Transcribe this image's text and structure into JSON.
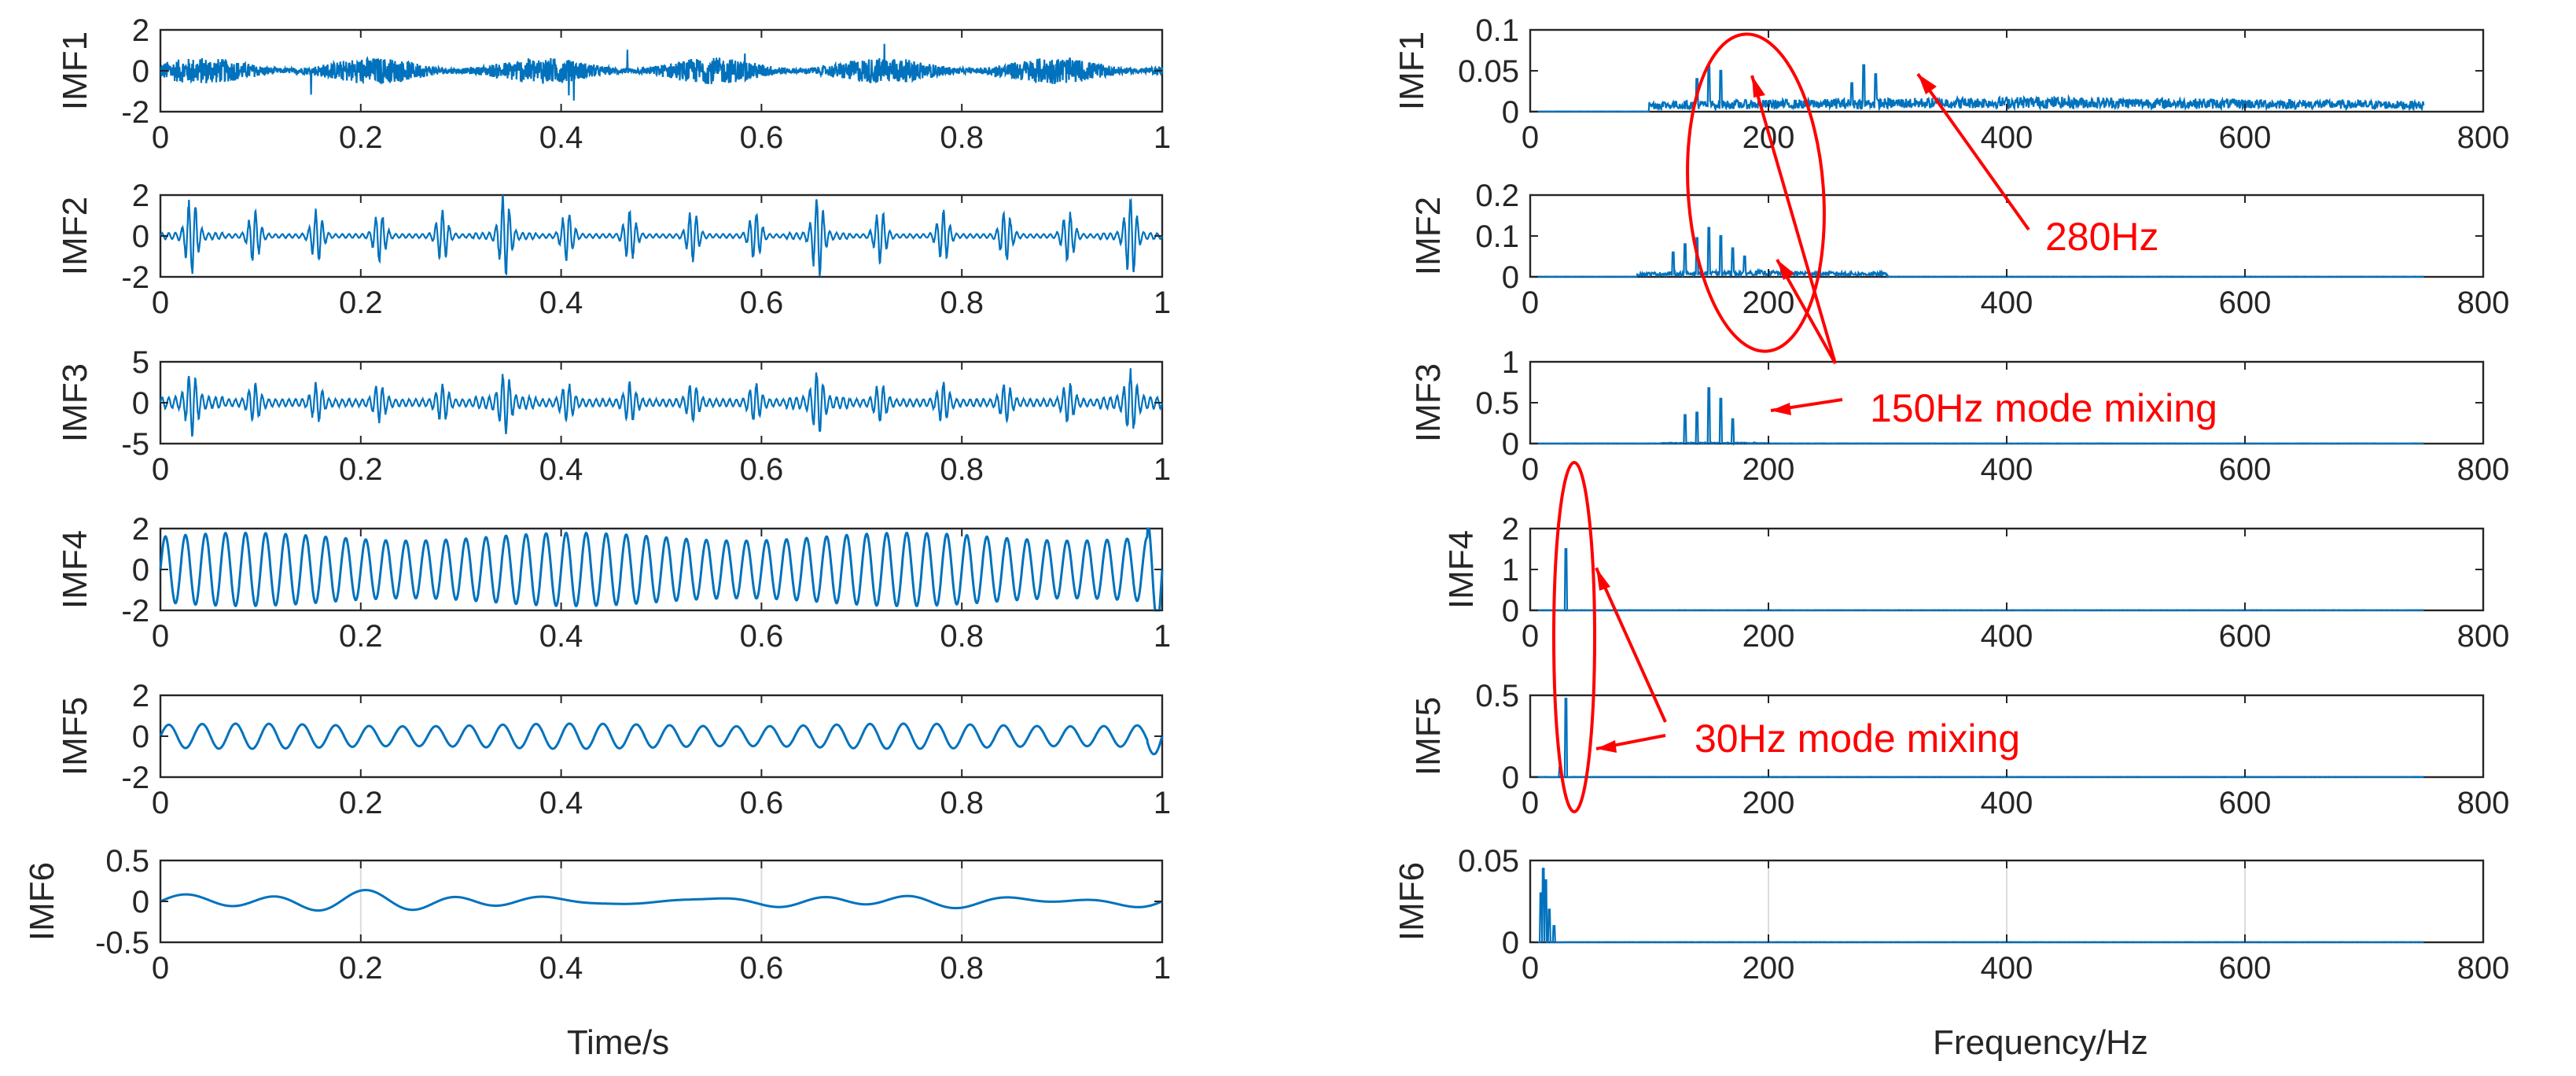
{
  "colors": {
    "signal": "#0072bd",
    "annotation": "#ff0000",
    "axis": "#262626",
    "grid": "#dcdcdc"
  },
  "chart_data": [
    {
      "panel": "time-domain",
      "type": "line",
      "xlabel": "Time/s",
      "xlim": [
        0,
        1
      ],
      "xticks": [
        "0",
        "0.2",
        "0.4",
        "0.6",
        "0.8",
        "1"
      ],
      "xtick_values": [
        0,
        0.2,
        0.4,
        0.6,
        0.8,
        1
      ],
      "rows": [
        {
          "label": "IMF1",
          "ylim": [
            -2,
            2
          ],
          "ytick_values": [
            -2,
            0,
            2
          ],
          "yticks": [
            "-2",
            "0",
            "2"
          ],
          "shape": "noise",
          "amp": 0.65,
          "freq": 280,
          "grid": false
        },
        {
          "label": "IMF2",
          "ylim": [
            -2,
            2
          ],
          "ytick_values": [
            -2,
            0,
            2
          ],
          "yticks": [
            "-2",
            "0",
            "2"
          ],
          "shape": "bursts",
          "amp": 1.3,
          "freq": 150,
          "grid": false
        },
        {
          "label": "IMF3",
          "ylim": [
            -5,
            5
          ],
          "ytick_values": [
            -5,
            0,
            5
          ],
          "yticks": [
            "-5",
            "0",
            "5"
          ],
          "shape": "bursts_dense",
          "amp": 2.2,
          "freq": 150,
          "grid": false
        },
        {
          "label": "IMF4",
          "ylim": [
            -2,
            2
          ],
          "ytick_values": [
            -2,
            0,
            2
          ],
          "yticks": [
            "-2",
            "0",
            "2"
          ],
          "shape": "sine",
          "amp": 1.6,
          "freq": 50,
          "grid": false
        },
        {
          "label": "IMF5",
          "ylim": [
            -2,
            2
          ],
          "ytick_values": [
            -2,
            0,
            2
          ],
          "yticks": [
            "-2",
            "0",
            "2"
          ],
          "shape": "sine",
          "amp": 0.55,
          "freq": 30,
          "grid": false
        },
        {
          "label": "IMF6",
          "ylim": [
            -0.5,
            0.5
          ],
          "ytick_values": [
            -0.5,
            0,
            0.5
          ],
          "yticks": [
            "-0.5",
            "0",
            "0.5"
          ],
          "shape": "low",
          "amp": 0.1,
          "freq": 11,
          "grid": true
        }
      ]
    },
    {
      "panel": "frequency-domain",
      "type": "line",
      "xlabel": "Frequency/Hz",
      "xlim": [
        0,
        800
      ],
      "data_xmax": 750,
      "xticks": [
        "0",
        "200",
        "400",
        "600",
        "800"
      ],
      "xtick_values": [
        0,
        200,
        400,
        600,
        800
      ],
      "rows": [
        {
          "label": "IMF1",
          "ylim": [
            0,
            0.1
          ],
          "ytick_values": [
            0,
            0.05,
            0.1
          ],
          "yticks": [
            "0",
            "0.05",
            "0.1"
          ],
          "peaks": [
            [
              150,
              0.057
            ],
            [
              160,
              0.05
            ],
            [
              140,
              0.04
            ],
            [
              280,
              0.057
            ],
            [
              290,
              0.046
            ],
            [
              270,
              0.035
            ]
          ],
          "floor": 0.012,
          "band": [
            100,
            750
          ],
          "grid": false
        },
        {
          "label": "IMF2",
          "ylim": [
            0,
            0.2
          ],
          "ytick_values": [
            0,
            0.1,
            0.2
          ],
          "yticks": [
            "0",
            "0.1",
            "0.2"
          ],
          "peaks": [
            [
              150,
              0.12
            ],
            [
              160,
              0.1
            ],
            [
              140,
              0.095
            ],
            [
              130,
              0.08
            ],
            [
              170,
              0.07
            ],
            [
              120,
              0.06
            ],
            [
              180,
              0.05
            ]
          ],
          "floor": 0.01,
          "band": [
            90,
            300
          ],
          "grid": false
        },
        {
          "label": "IMF3",
          "ylim": [
            0,
            1
          ],
          "ytick_values": [
            0,
            0.5,
            1
          ],
          "yticks": [
            "0",
            "0.5",
            "1"
          ],
          "peaks": [
            [
              150,
              0.68
            ],
            [
              160,
              0.55
            ],
            [
              140,
              0.38
            ],
            [
              130,
              0.35
            ],
            [
              170,
              0.3
            ]
          ],
          "floor": 0.01,
          "band": [
            110,
            200
          ],
          "grid": false
        },
        {
          "label": "IMF4",
          "ylim": [
            0,
            2
          ],
          "ytick_values": [
            0,
            1,
            2
          ],
          "yticks": [
            "0",
            "1",
            "2"
          ],
          "peaks": [
            [
              30,
              1.5
            ]
          ],
          "floor": 0.0,
          "band": [
            25,
            35
          ],
          "grid": false
        },
        {
          "label": "IMF5",
          "ylim": [
            0,
            0.5
          ],
          "ytick_values": [
            0,
            0.5
          ],
          "yticks": [
            "0",
            "0.5"
          ],
          "peaks": [
            [
              30,
              0.48
            ],
            [
              25,
              0.06
            ]
          ],
          "floor": 0.0,
          "band": [
            15,
            35
          ],
          "grid": false
        },
        {
          "label": "IMF6",
          "ylim": [
            0,
            0.05
          ],
          "ytick_values": [
            0,
            0.05
          ],
          "yticks": [
            "0",
            "0.05"
          ],
          "peaks": [
            [
              11,
              0.045
            ],
            [
              13,
              0.038
            ],
            [
              9,
              0.03
            ],
            [
              16,
              0.02
            ],
            [
              20,
              0.01
            ]
          ],
          "floor": 0.0,
          "band": [
            3,
            30
          ],
          "grid": true
        }
      ],
      "annotations": {
        "label_280": "280Hz",
        "label_150": "150Hz mode mixing",
        "label_30": "30Hz mode mixing"
      }
    }
  ]
}
